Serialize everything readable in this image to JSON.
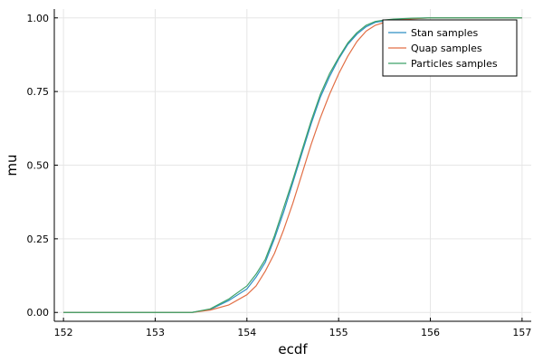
{
  "chart_data": {
    "type": "line",
    "title": "",
    "xlabel": "ecdf",
    "ylabel": "mu",
    "xlim": [
      152,
      157
    ],
    "ylim": [
      0,
      1
    ],
    "xticks": [
      "152",
      "153",
      "154",
      "155",
      "156",
      "157"
    ],
    "yticks": [
      "0.00",
      "0.25",
      "0.50",
      "0.75",
      "1.00"
    ],
    "grid": true,
    "legend_position": "top-right",
    "series": [
      {
        "name": "Stan samples",
        "color": "#2f8fc4",
        "x": [
          152.0,
          153.0,
          153.4,
          153.6,
          153.8,
          154.0,
          154.1,
          154.2,
          154.3,
          154.4,
          154.5,
          154.6,
          154.7,
          154.8,
          154.9,
          155.0,
          155.1,
          155.2,
          155.3,
          155.4,
          155.5,
          155.6,
          155.8,
          156.0,
          157.0
        ],
        "y": [
          0.0,
          0.0,
          0.0,
          0.01,
          0.04,
          0.08,
          0.12,
          0.17,
          0.25,
          0.34,
          0.44,
          0.54,
          0.64,
          0.73,
          0.8,
          0.86,
          0.91,
          0.945,
          0.97,
          0.985,
          0.99,
          0.995,
          0.998,
          1.0,
          1.0
        ]
      },
      {
        "name": "Quap samples",
        "color": "#e26f46",
        "x": [
          152.0,
          153.0,
          153.4,
          153.6,
          153.8,
          154.0,
          154.1,
          154.2,
          154.3,
          154.4,
          154.5,
          154.6,
          154.7,
          154.8,
          154.9,
          155.0,
          155.1,
          155.2,
          155.3,
          155.4,
          155.5,
          155.6,
          155.8,
          156.0,
          157.0
        ],
        "y": [
          0.0,
          0.0,
          0.0,
          0.008,
          0.025,
          0.06,
          0.09,
          0.14,
          0.2,
          0.28,
          0.37,
          0.47,
          0.57,
          0.66,
          0.74,
          0.81,
          0.87,
          0.92,
          0.955,
          0.975,
          0.985,
          0.992,
          0.997,
          1.0,
          1.0
        ]
      },
      {
        "name": "Particles samples",
        "color": "#3ea269",
        "x": [
          152.0,
          153.0,
          153.4,
          153.6,
          153.8,
          154.0,
          154.1,
          154.2,
          154.3,
          154.4,
          154.5,
          154.6,
          154.7,
          154.8,
          154.9,
          155.0,
          155.1,
          155.2,
          155.3,
          155.4,
          155.5,
          155.6,
          155.8,
          156.0,
          157.0
        ],
        "y": [
          0.0,
          0.0,
          0.0,
          0.012,
          0.045,
          0.09,
          0.13,
          0.18,
          0.26,
          0.355,
          0.45,
          0.55,
          0.65,
          0.74,
          0.81,
          0.865,
          0.915,
          0.95,
          0.975,
          0.988,
          0.993,
          0.996,
          0.999,
          1.0,
          1.0
        ]
      }
    ]
  }
}
